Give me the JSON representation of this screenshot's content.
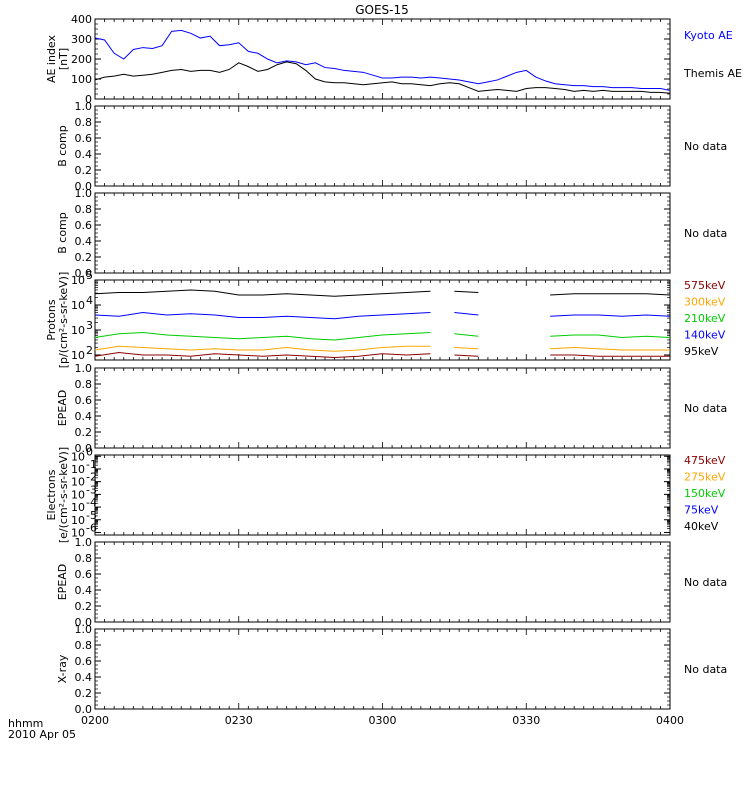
{
  "title": "GOES-15",
  "time_axis": {
    "label_line1": "hhmm",
    "label_line2": "2010 Apr 05",
    "ticks": [
      "0200",
      "0230",
      "0300",
      "0330",
      "0400"
    ],
    "range_minutes": [
      0,
      120
    ]
  },
  "colors": {
    "axis": "#000000",
    "kyoto": "#0000ff",
    "themis": "#000000",
    "e575": "#8b0000",
    "e300": "#ffa500",
    "e210": "#00cc00",
    "e140": "#0000ff",
    "e95": "#000000"
  },
  "chart_data": [
    {
      "type": "line",
      "id": "ae",
      "ylabel": [
        "AE index",
        "[nT]"
      ],
      "ylim": [
        0,
        420
      ],
      "yticks": [
        "0",
        "100",
        "200",
        "300",
        "400"
      ],
      "x": [
        0,
        2,
        4,
        6,
        8,
        10,
        12,
        14,
        16,
        18,
        20,
        22,
        24,
        26,
        28,
        30,
        32,
        34,
        36,
        38,
        40,
        42,
        44,
        46,
        48,
        50,
        52,
        54,
        56,
        58,
        60,
        62,
        64,
        66,
        68,
        70,
        72,
        74,
        76,
        78,
        80,
        82,
        84,
        86,
        88,
        90,
        92,
        94,
        96,
        98,
        100,
        102,
        104,
        106,
        108,
        110,
        112,
        114,
        116,
        118,
        120
      ],
      "series": [
        {
          "name": "Kyoto AE",
          "color_key": "kyoto",
          "values": [
            320,
            310,
            240,
            210,
            260,
            270,
            265,
            280,
            355,
            360,
            345,
            320,
            330,
            280,
            285,
            295,
            250,
            240,
            210,
            190,
            200,
            195,
            180,
            190,
            165,
            160,
            150,
            145,
            140,
            125,
            110,
            110,
            115,
            115,
            110,
            115,
            110,
            105,
            100,
            90,
            80,
            90,
            100,
            120,
            140,
            150,
            115,
            95,
            80,
            75,
            70,
            70,
            65,
            65,
            60,
            60,
            60,
            55,
            55,
            55,
            45
          ]
        },
        {
          "name": "Themis AE",
          "color_key": "themis",
          "values": [
            100,
            115,
            120,
            130,
            120,
            125,
            130,
            140,
            150,
            155,
            145,
            150,
            150,
            140,
            155,
            190,
            170,
            145,
            155,
            180,
            195,
            185,
            150,
            105,
            90,
            85,
            85,
            80,
            75,
            80,
            85,
            90,
            80,
            80,
            75,
            70,
            80,
            85,
            80,
            60,
            40,
            45,
            50,
            45,
            40,
            55,
            60,
            60,
            55,
            50,
            40,
            45,
            40,
            45,
            40,
            40,
            40,
            40,
            35,
            35,
            30
          ]
        }
      ],
      "right_labels": [
        {
          "text": "Kyoto AE",
          "color_key": "kyoto"
        },
        {
          "text": "Themis AE",
          "color_key": "themis"
        }
      ]
    },
    {
      "type": "line",
      "id": "bcomp1",
      "ylabel": [
        "B comp"
      ],
      "ylim": [
        0,
        1.0
      ],
      "yticks": [
        "0.0",
        "0.2",
        "0.4",
        "0.6",
        "0.8",
        "1.0"
      ],
      "series": [],
      "right_labels": [
        {
          "text": "No data",
          "color_key": "axis"
        }
      ]
    },
    {
      "type": "line",
      "id": "bcomp2",
      "ylabel": [
        "B comp"
      ],
      "ylim": [
        0,
        1.0
      ],
      "yticks": [
        "0.0",
        "0.2",
        "0.4",
        "0.6",
        "0.8",
        "1.0"
      ],
      "series": [],
      "right_labels": [
        {
          "text": "No data",
          "color_key": "axis"
        }
      ]
    },
    {
      "type": "line",
      "id": "protons",
      "scale": "log",
      "ylabel": [
        "Protons",
        "[p/(cm²-s-sr-keV)]"
      ],
      "ylim_log": [
        1.8,
        5.0
      ],
      "yticks_log": [
        {
          "exp": 2,
          "label": "10",
          "sup": "2"
        },
        {
          "exp": 3,
          "label": "10",
          "sup": "3"
        },
        {
          "exp": 4,
          "label": "10",
          "sup": "4"
        },
        {
          "exp": 5,
          "label": "10",
          "sup": "5"
        }
      ],
      "x": [
        0,
        5,
        10,
        15,
        20,
        25,
        30,
        35,
        40,
        45,
        50,
        55,
        60,
        65,
        70,
        75,
        80,
        85,
        90,
        95,
        100,
        105,
        110,
        115,
        120
      ],
      "gaps": [
        [
          72,
          74
        ],
        [
          84,
          86
        ],
        [
          92,
          94
        ]
      ],
      "series": [
        {
          "name": "95keV",
          "color_key": "e95",
          "log_values": [
            4.45,
            4.5,
            4.5,
            4.55,
            4.6,
            4.55,
            4.4,
            4.4,
            4.45,
            4.4,
            4.35,
            4.4,
            4.45,
            4.5,
            4.55,
            4.55,
            4.5,
            4.45,
            4.4,
            4.4,
            4.45,
            4.45,
            4.45,
            4.45,
            4.4
          ]
        },
        {
          "name": "140keV",
          "color_key": "e140",
          "log_values": [
            3.6,
            3.55,
            3.7,
            3.6,
            3.65,
            3.6,
            3.5,
            3.5,
            3.55,
            3.5,
            3.45,
            3.55,
            3.6,
            3.65,
            3.7,
            3.7,
            3.6,
            3.5,
            3.45,
            3.55,
            3.6,
            3.6,
            3.55,
            3.6,
            3.55
          ]
        },
        {
          "name": "210keV",
          "color_key": "e210",
          "log_values": [
            2.7,
            2.85,
            2.9,
            2.8,
            2.75,
            2.7,
            2.65,
            2.7,
            2.75,
            2.65,
            2.6,
            2.7,
            2.8,
            2.85,
            2.9,
            2.85,
            2.75,
            2.7,
            2.65,
            2.75,
            2.8,
            2.8,
            2.7,
            2.75,
            2.7
          ]
        },
        {
          "name": "300keV",
          "color_key": "e300",
          "log_values": [
            2.2,
            2.35,
            2.3,
            2.25,
            2.2,
            2.25,
            2.2,
            2.2,
            2.3,
            2.2,
            2.15,
            2.2,
            2.3,
            2.35,
            2.35,
            2.3,
            2.25,
            2.25,
            2.2,
            2.25,
            2.3,
            2.25,
            2.2,
            2.2,
            2.2
          ]
        },
        {
          "name": "575keV",
          "color_key": "e575",
          "log_values": [
            1.95,
            2.1,
            2.0,
            2.0,
            1.95,
            2.05,
            2.0,
            1.95,
            2.0,
            1.95,
            1.9,
            1.95,
            2.05,
            2.0,
            2.05,
            2.0,
            1.95,
            2.0,
            1.95,
            2.0,
            2.0,
            1.95,
            1.95,
            1.95,
            1.95
          ]
        }
      ],
      "right_labels": [
        {
          "text": "575keV",
          "color_key": "e575"
        },
        {
          "text": "300keV",
          "color_key": "e300"
        },
        {
          "text": "210keV",
          "color_key": "e210"
        },
        {
          "text": "140keV",
          "color_key": "e140"
        },
        {
          "text": "95keV",
          "color_key": "e95"
        }
      ]
    },
    {
      "type": "line",
      "id": "epead1",
      "ylabel": [
        "EPEAD"
      ],
      "ylim": [
        0,
        1.0
      ],
      "yticks": [
        "0.0",
        "0.2",
        "0.4",
        "0.6",
        "0.8",
        "1.0"
      ],
      "series": [],
      "right_labels": [
        {
          "text": "No data",
          "color_key": "axis"
        }
      ]
    },
    {
      "type": "line",
      "id": "electrons",
      "scale": "log",
      "ylabel": [
        "Electrons",
        "[e/(cm²-s-sr-keV)]"
      ],
      "ylim_log": [
        -6.2,
        0.1
      ],
      "yticks_log": [
        {
          "exp": 0,
          "label": "10",
          "sup": "0"
        },
        {
          "exp": -1,
          "label": "10",
          "sup": "-1"
        },
        {
          "exp": -2,
          "label": "10",
          "sup": "-2"
        },
        {
          "exp": -3,
          "label": "10",
          "sup": "-3"
        },
        {
          "exp": -4,
          "label": "10",
          "sup": "-4"
        },
        {
          "exp": -5,
          "label": "10",
          "sup": "-5"
        },
        {
          "exp": -6,
          "label": "10",
          "sup": "-6"
        }
      ],
      "series": [],
      "right_labels": [
        {
          "text": "475keV",
          "color_key": "e575"
        },
        {
          "text": "275keV",
          "color_key": "e300"
        },
        {
          "text": "150keV",
          "color_key": "e210"
        },
        {
          "text": "75keV",
          "color_key": "e140"
        },
        {
          "text": "40keV",
          "color_key": "e95"
        }
      ]
    },
    {
      "type": "line",
      "id": "epead2",
      "ylabel": [
        "EPEAD"
      ],
      "ylim": [
        0,
        1.0
      ],
      "yticks": [
        "0.0",
        "0.2",
        "0.4",
        "0.6",
        "0.8",
        "1.0"
      ],
      "series": [],
      "right_labels": [
        {
          "text": "No data",
          "color_key": "axis"
        }
      ]
    },
    {
      "type": "line",
      "id": "xray",
      "ylabel": [
        "X-ray"
      ],
      "ylim": [
        0,
        1.0
      ],
      "yticks": [
        "0.0",
        "0.2",
        "0.4",
        "0.6",
        "0.8",
        "1.0"
      ],
      "series": [],
      "right_labels": [
        {
          "text": "No data",
          "color_key": "axis"
        }
      ]
    }
  ]
}
